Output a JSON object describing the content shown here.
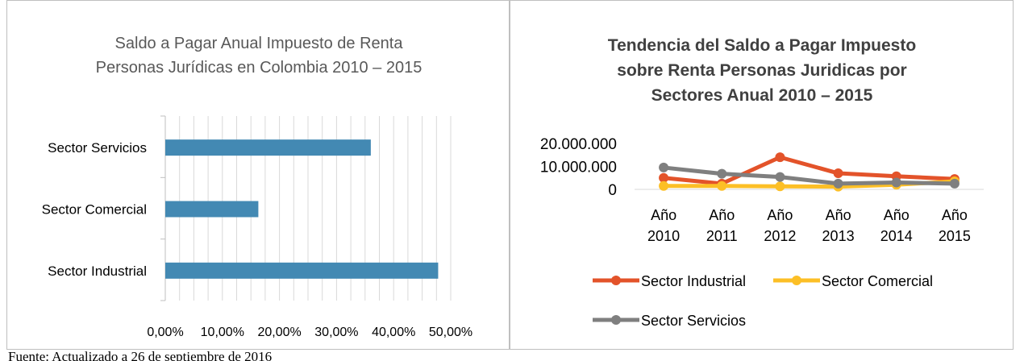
{
  "footnote": "Fuente: Actualizado a 26 de septiembre de 2016",
  "chart_data": [
    {
      "type": "bar",
      "orientation": "horizontal",
      "title": [
        "Saldo a Pagar Anual Impuesto  de Renta",
        "Personas Jurídicas en Colombia 2010 – 2015"
      ],
      "categories": [
        "Sector Servicios",
        "Sector Comercial",
        "Sector Industrial"
      ],
      "values": [
        0.36,
        0.163,
        0.478
      ],
      "xlim": [
        0,
        0.5
      ],
      "xticks": [
        "0,00%",
        "10,00%",
        "20,00%",
        "30,00%",
        "40,00%",
        "50,00%"
      ],
      "grid": true,
      "colors": {
        "bar": "#4389b3",
        "grid": "#d9d9d9",
        "axis": "#bfbfbf",
        "text": "#595959"
      }
    },
    {
      "type": "line",
      "title": [
        "Tendencia  del Saldo a Pagar Impuesto",
        "sobre Renta Personas Juridicas por",
        "Sectores   Anual 2010 – 2015"
      ],
      "categories": [
        [
          "Año",
          "2010"
        ],
        [
          "Año",
          "2011"
        ],
        [
          "Año",
          "2012"
        ],
        [
          "Año",
          "2013"
        ],
        [
          "Año",
          "2014"
        ],
        [
          "Año",
          "2015"
        ]
      ],
      "yticks": [
        "20.000.000",
        "10.000.000",
        "0"
      ],
      "ylim": [
        0,
        20000000
      ],
      "series": [
        {
          "name": "Sector Industrial",
          "color": "#e3532a",
          "values": [
            5000000,
            2500000,
            14000000,
            7000000,
            5700000,
            4500000
          ]
        },
        {
          "name": "Sector Comercial",
          "color": "#fcbf26",
          "values": [
            1500000,
            1500000,
            1300000,
            1200000,
            2000000,
            3500000
          ]
        },
        {
          "name": "Sector Servicios",
          "color": "#7f7f7f",
          "values": [
            9500000,
            6800000,
            5400000,
            2500000,
            3000000,
            2500000
          ]
        }
      ],
      "legend_position": "bottom",
      "grid": false
    }
  ]
}
